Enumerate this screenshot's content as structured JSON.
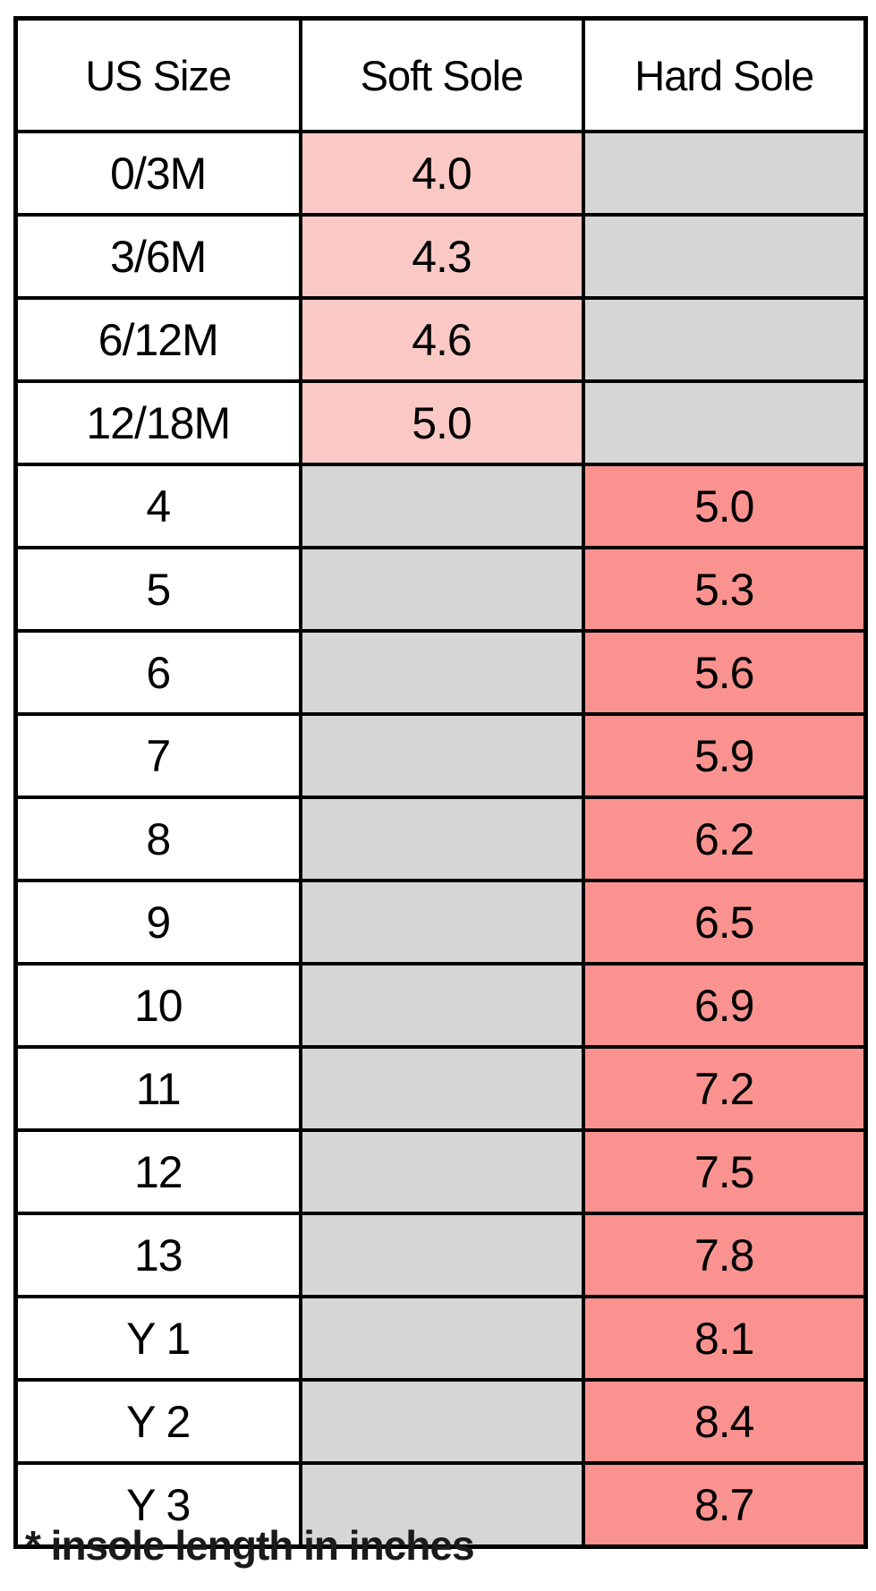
{
  "colors": {
    "soft_pink": "#fbc9c5",
    "hard_red": "#fa938f",
    "empty_gray": "#d6d6d6",
    "border": "#000000"
  },
  "chart_data": {
    "type": "table",
    "title": "",
    "columns": [
      "US Size",
      "Soft Sole",
      "Hard Sole"
    ],
    "rows": [
      {
        "size": "0/3M",
        "soft": "4.0",
        "hard": ""
      },
      {
        "size": "3/6M",
        "soft": "4.3",
        "hard": ""
      },
      {
        "size": "6/12M",
        "soft": "4.6",
        "hard": ""
      },
      {
        "size": "12/18M",
        "soft": "5.0",
        "hard": ""
      },
      {
        "size": "4",
        "soft": "",
        "hard": "5.0"
      },
      {
        "size": "5",
        "soft": "",
        "hard": "5.3"
      },
      {
        "size": "6",
        "soft": "",
        "hard": "5.6"
      },
      {
        "size": "7",
        "soft": "",
        "hard": "5.9"
      },
      {
        "size": "8",
        "soft": "",
        "hard": "6.2"
      },
      {
        "size": "9",
        "soft": "",
        "hard": "6.5"
      },
      {
        "size": "10",
        "soft": "",
        "hard": "6.9"
      },
      {
        "size": "11",
        "soft": "",
        "hard": "7.2"
      },
      {
        "size": "12",
        "soft": "",
        "hard": "7.5"
      },
      {
        "size": "13",
        "soft": "",
        "hard": "7.8"
      },
      {
        "size": "Y 1",
        "soft": "",
        "hard": "8.1"
      },
      {
        "size": "Y 2",
        "soft": "",
        "hard": "8.4"
      },
      {
        "size": "Y 3",
        "soft": "",
        "hard": "8.7"
      }
    ],
    "footnote": "* insole length in inches",
    "legend": {
      "soft_sole_filled_color": "#fbc9c5",
      "hard_sole_filled_color": "#fa938f",
      "not_available_color": "#d6d6d6"
    }
  }
}
